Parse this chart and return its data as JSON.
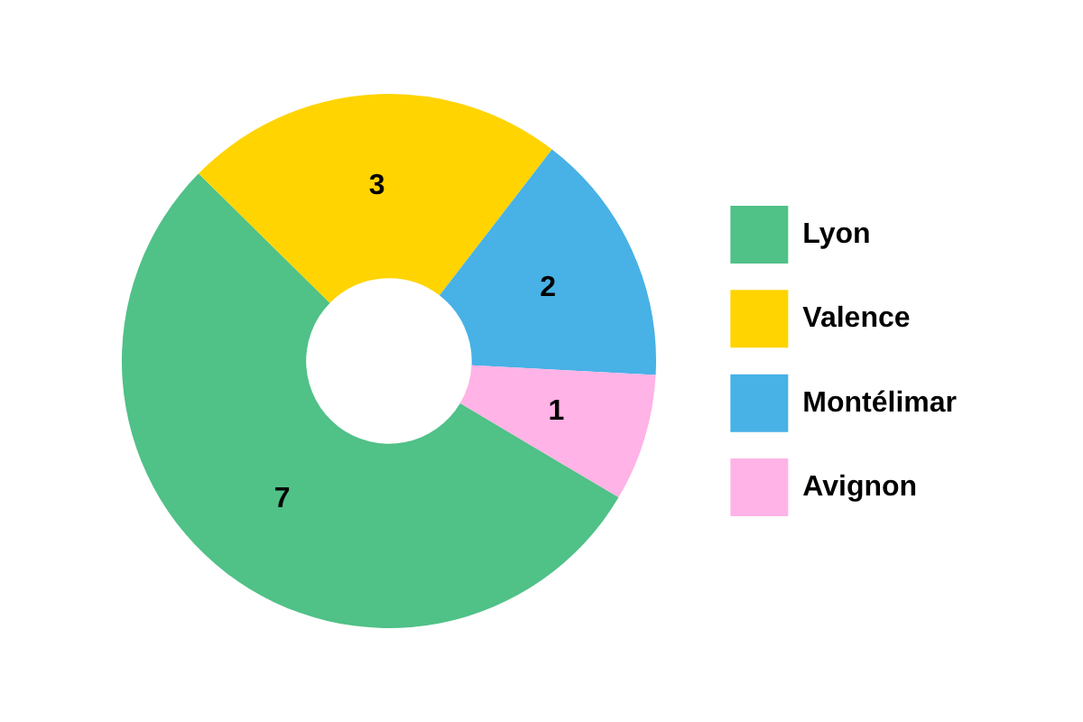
{
  "chart_data": {
    "type": "donut",
    "categories": [
      "Lyon",
      "Valence",
      "Montélimar",
      "Avignon"
    ],
    "values": [
      7,
      3,
      2,
      1
    ],
    "colors": [
      "#50c187",
      "#ffd400",
      "#48b1e6",
      "#ffb3e6"
    ],
    "legend": "right",
    "data_labels": true
  }
}
